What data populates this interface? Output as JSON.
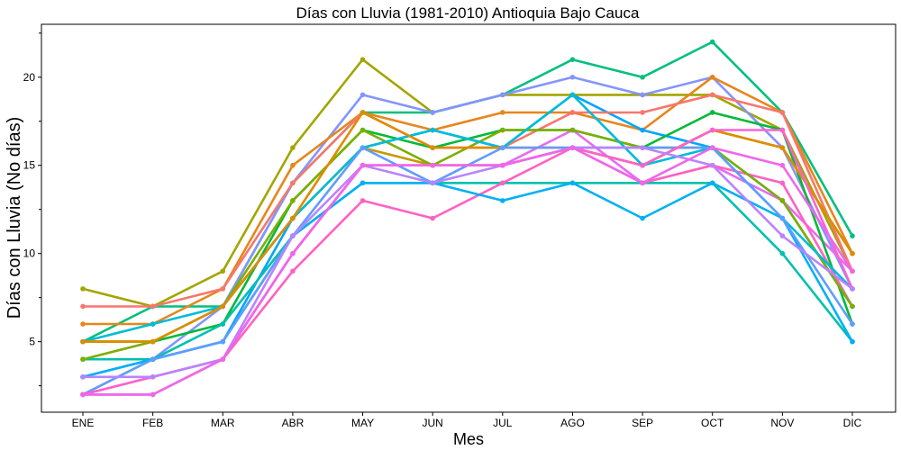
{
  "chart_data": {
    "type": "line",
    "title": "Días con Lluvia (1981-2010)  Antioquia Bajo Cauca",
    "xlabel": "Mes",
    "ylabel": "Días con Lluvia (No días)",
    "categories": [
      "ENE",
      "FEB",
      "MAR",
      "ABR",
      "MAY",
      "JUN",
      "JUL",
      "AGO",
      "SEP",
      "OCT",
      "NOV",
      "DIC"
    ],
    "ylim": [
      1.0,
      23.0
    ],
    "yticks": [
      5,
      10,
      15,
      20
    ],
    "grid": false,
    "series": [
      {
        "color": "#A3A500",
        "values": [
          8,
          7,
          9,
          16,
          21,
          18,
          19,
          19,
          19,
          19,
          17,
          9
        ]
      },
      {
        "color": "#00BF7D",
        "values": [
          5,
          7,
          7,
          14,
          18,
          18,
          19,
          21,
          20,
          22,
          18,
          11
        ]
      },
      {
        "color": "#8494FF",
        "values": [
          2,
          4,
          7,
          14,
          19,
          18,
          19,
          20,
          19,
          20,
          16,
          8
        ]
      },
      {
        "color": "#E7861B",
        "values": [
          6,
          6,
          8,
          15,
          18,
          17,
          18,
          18,
          17,
          20,
          18,
          10
        ]
      },
      {
        "color": "#00A5FF",
        "values": [
          3,
          4,
          5,
          12,
          16,
          17,
          16,
          19,
          17,
          16,
          13,
          7
        ]
      },
      {
        "color": "#E76BF3",
        "values": [
          2,
          2,
          4,
          10,
          15,
          15,
          15,
          17,
          14,
          15,
          13,
          9
        ]
      },
      {
        "color": "#F8766D",
        "values": [
          7,
          7,
          8,
          14,
          18,
          16,
          16,
          18,
          18,
          19,
          18,
          9
        ]
      },
      {
        "color": "#00BA38",
        "values": [
          5,
          5,
          6,
          13,
          17,
          16,
          17,
          17,
          16,
          18,
          17,
          6
        ]
      },
      {
        "color": "#C49A00",
        "values": [
          5,
          5,
          7,
          12,
          16,
          15,
          15,
          16,
          15,
          17,
          16,
          10
        ]
      },
      {
        "color": "#00C0AF",
        "values": [
          4,
          4,
          6,
          11,
          14,
          14,
          14,
          14,
          14,
          14,
          10,
          5
        ]
      },
      {
        "color": "#FF61C3",
        "values": [
          2,
          3,
          4,
          9,
          13,
          12,
          14,
          16,
          14,
          15,
          14,
          7
        ]
      },
      {
        "color": "#00B0F6",
        "values": [
          3,
          4,
          5,
          11,
          14,
          14,
          13,
          14,
          12,
          14,
          12,
          5
        ]
      },
      {
        "color": "#7CAE00",
        "values": [
          4,
          5,
          7,
          13,
          17,
          15,
          17,
          17,
          16,
          16,
          13,
          7
        ]
      },
      {
        "color": "#00BCD8",
        "values": [
          5,
          6,
          7,
          12,
          16,
          17,
          16,
          19,
          15,
          16,
          12,
          8
        ]
      },
      {
        "color": "#DE8C00",
        "values": [
          5,
          5,
          7,
          12,
          18,
          16,
          16,
          16,
          15,
          17,
          16,
          10
        ]
      },
      {
        "color": "#619CFF",
        "values": [
          2,
          4,
          5,
          11,
          16,
          14,
          16,
          16,
          16,
          16,
          12,
          6
        ]
      },
      {
        "color": "#FD61D1",
        "values": [
          2,
          3,
          4,
          10,
          15,
          15,
          15,
          16,
          15,
          17,
          17,
          8
        ]
      },
      {
        "color": "#B983FF",
        "values": [
          3,
          3,
          4,
          11,
          15,
          14,
          15,
          16,
          16,
          15,
          11,
          8
        ]
      },
      {
        "color": "#F066EA",
        "values": [
          2,
          2,
          4,
          10,
          15,
          15,
          15,
          16,
          14,
          16,
          15,
          9
        ]
      }
    ]
  }
}
